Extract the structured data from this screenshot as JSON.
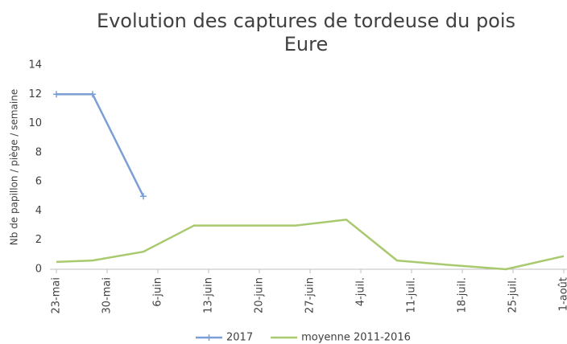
{
  "chart_data": {
    "type": "line",
    "title": "Evolution des captures de tordeuse du pois",
    "subtitle": "Eure",
    "ylabel": "Nb  de papillon / piège / semaine",
    "xlim": [
      0,
      70
    ],
    "xticks": [
      {
        "value": 0,
        "label": "23-mai"
      },
      {
        "value": 7,
        "label": "30-mai"
      },
      {
        "value": 14,
        "label": "6-juin"
      },
      {
        "value": 21,
        "label": "13-juin"
      },
      {
        "value": 28,
        "label": "20-juin"
      },
      {
        "value": 35,
        "label": "27-juin"
      },
      {
        "value": 42,
        "label": "4-juil."
      },
      {
        "value": 49,
        "label": "11-juil."
      },
      {
        "value": 56,
        "label": "18-juil."
      },
      {
        "value": 63,
        "label": "25-juil."
      },
      {
        "value": 70,
        "label": "1-août"
      }
    ],
    "ylim": [
      0,
      14
    ],
    "yticks": [
      0,
      2,
      4,
      6,
      8,
      10,
      12,
      14
    ],
    "grid": false,
    "legend": "bottom",
    "series": [
      {
        "name": "2017",
        "color": "#7a9fd6",
        "marker": "+",
        "x": [
          0,
          5,
          12
        ],
        "values": [
          12,
          12,
          5
        ]
      },
      {
        "name": "moyenne 2011-2016",
        "color": "#a8c96e",
        "x": [
          0,
          5,
          12,
          19,
          33,
          40,
          47,
          54,
          62,
          70
        ],
        "values": [
          0.5,
          0.6,
          1.2,
          3,
          3,
          3.4,
          0.6,
          0.3,
          0,
          0.9
        ]
      }
    ]
  }
}
